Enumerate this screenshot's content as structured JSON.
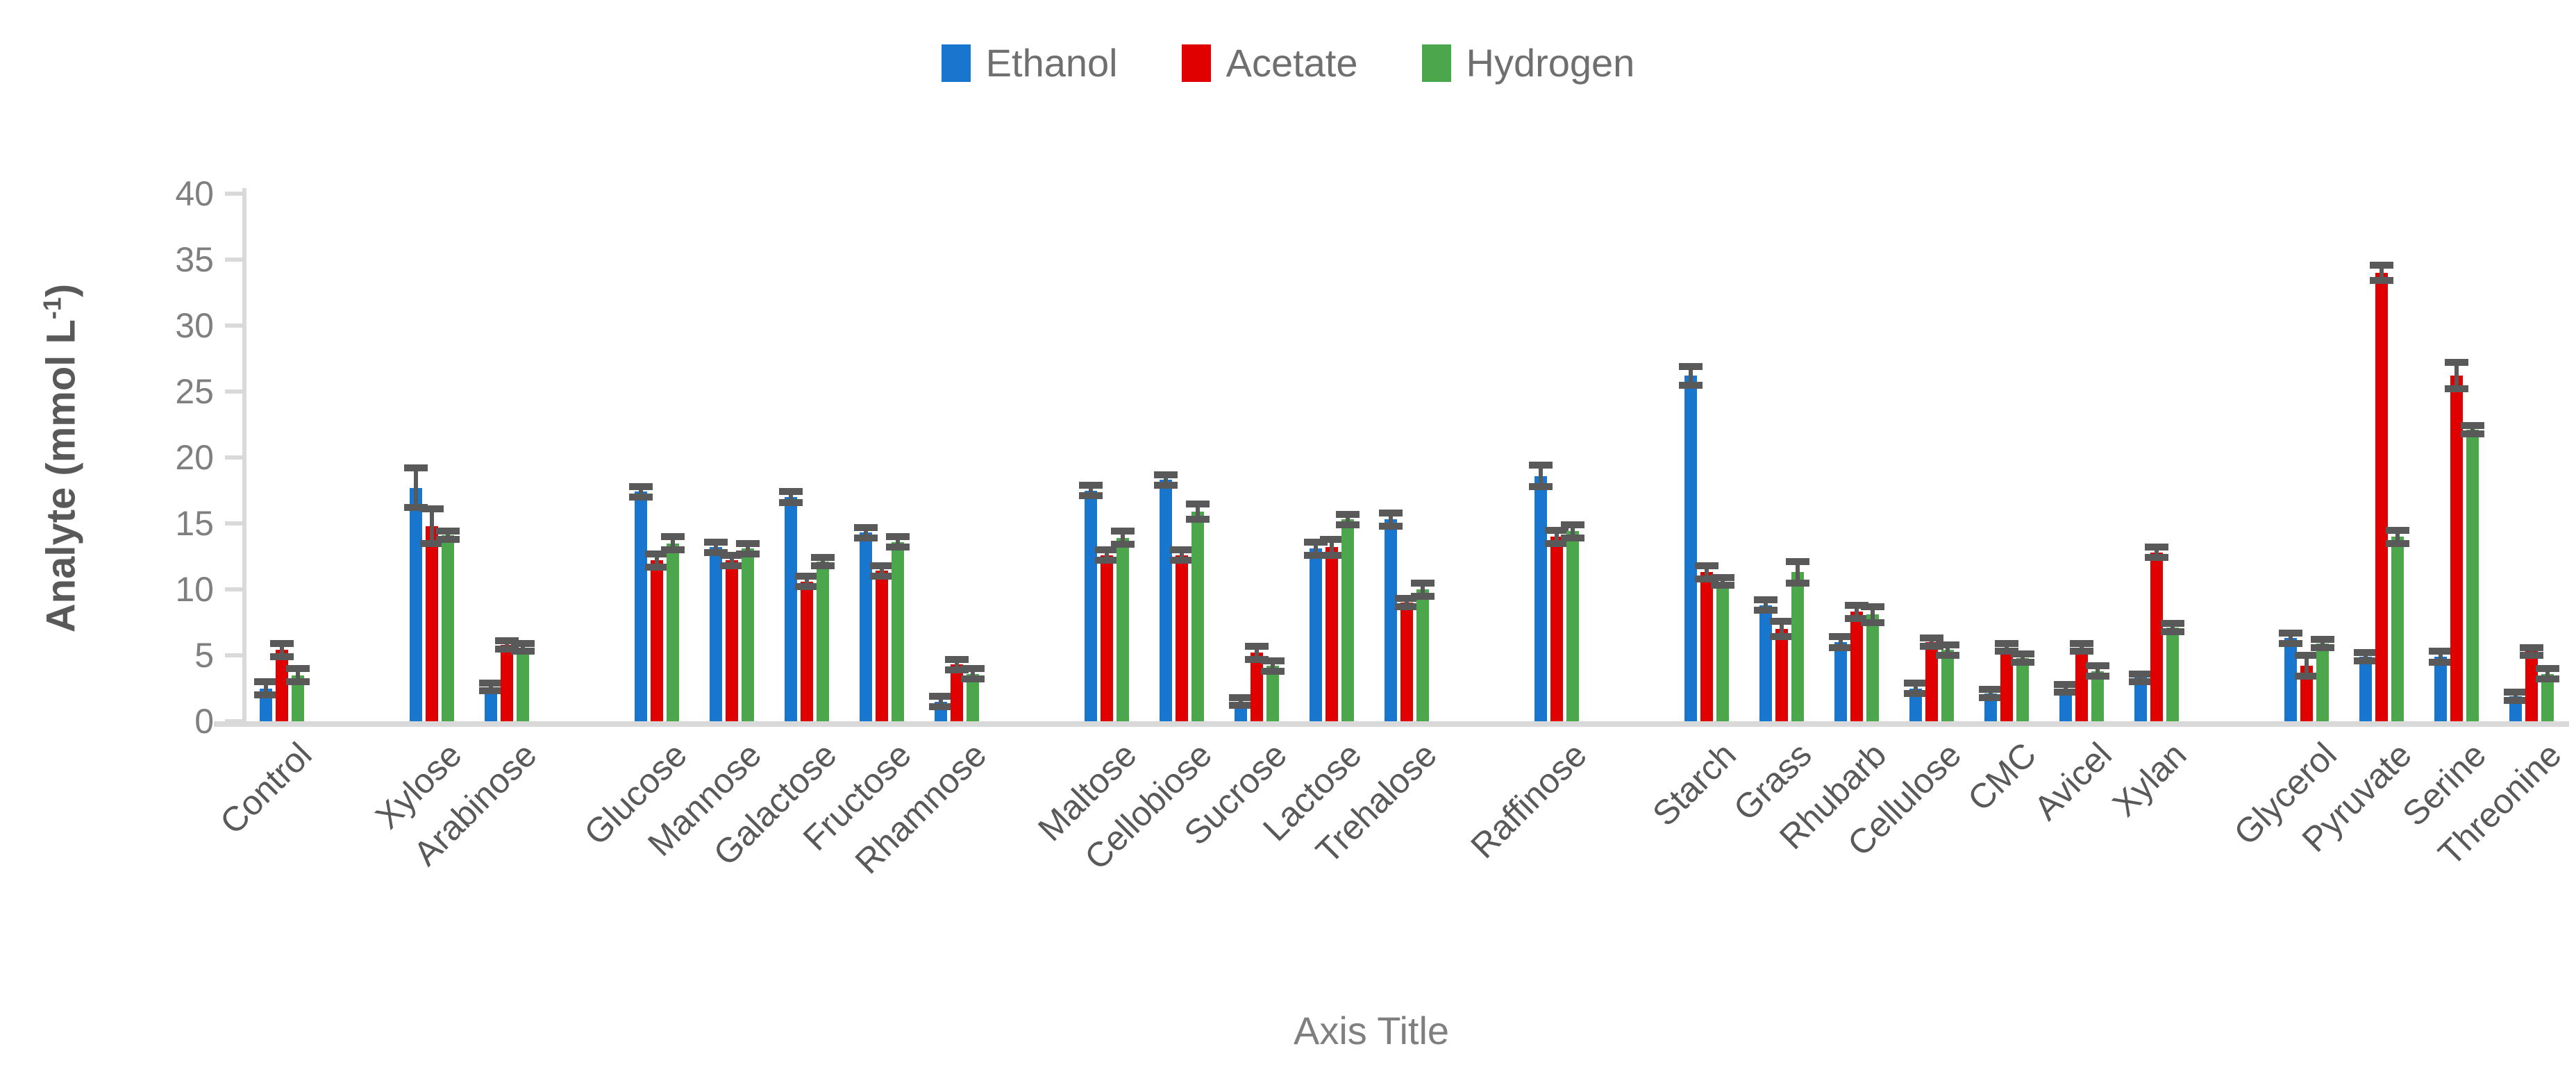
{
  "legend": {
    "items": [
      {
        "label": "Ethanol",
        "color": "#1976CE"
      },
      {
        "label": "Acetate",
        "color": "#E00000"
      },
      {
        "label": "Hydrogen",
        "color": "#4CA64C"
      }
    ]
  },
  "y_axis": {
    "title_main": "Analyte (mmol L",
    "title_sup": "-1",
    "title_close": ")",
    "ticks": [
      0,
      5,
      10,
      15,
      20,
      25,
      30,
      35,
      40
    ]
  },
  "x_axis": {
    "title": "Axis Title"
  },
  "colors": {
    "error_bar": "#595959",
    "axis_line": "#D9D9D9",
    "tick_text": "#7F7F7F",
    "category_text": "#595959"
  },
  "chart_data": {
    "type": "bar",
    "title": "",
    "xlabel": "Axis Title",
    "ylabel": "Analyte (mmol L-1)",
    "ylim": [
      0,
      40
    ],
    "grid": false,
    "legend_position": "top",
    "error_bars": true,
    "categories": [
      "Control",
      "Xylose",
      "Arabinose",
      "Glucose",
      "Mannose",
      "Galactose",
      "Fructose",
      "Rhamnose",
      "Maltose",
      "Cellobiose",
      "Sucrose",
      "Lactose",
      "Trehalose",
      "Raffinose",
      "Starch",
      "Grass",
      "Rhubarb",
      "Cellulose",
      "CMC",
      "Avicel",
      "Xylan",
      "Glycerol",
      "Pyruvate",
      "Serine",
      "Threonine"
    ],
    "gap_after": [
      "Control",
      "Arabinose",
      "Rhamnose",
      "Trehalose",
      "Raffinose",
      "Xylan"
    ],
    "series": [
      {
        "name": "Ethanol",
        "color": "#1976CE",
        "values": [
          2.5,
          17.7,
          2.6,
          17.4,
          13.2,
          17.0,
          14.3,
          1.5,
          17.5,
          18.3,
          1.5,
          13.1,
          15.3,
          18.6,
          26.2,
          8.8,
          6.0,
          2.5,
          2.1,
          2.5,
          3.3,
          6.3,
          4.9,
          4.9,
          1.9
        ],
        "errors": [
          0.5,
          1.5,
          0.3,
          0.4,
          0.4,
          0.4,
          0.4,
          0.4,
          0.4,
          0.4,
          0.3,
          0.5,
          0.5,
          0.8,
          0.7,
          0.4,
          0.4,
          0.4,
          0.3,
          0.3,
          0.3,
          0.4,
          0.3,
          0.4,
          0.3
        ]
      },
      {
        "name": "Acetate",
        "color": "#E00000",
        "values": [
          5.4,
          14.8,
          5.8,
          12.2,
          12.2,
          10.6,
          11.4,
          4.3,
          12.6,
          12.6,
          5.2,
          13.2,
          9.0,
          14.0,
          11.3,
          7.0,
          8.3,
          6.0,
          5.6,
          5.6,
          12.8,
          4.2,
          34.0,
          26.2,
          5.3
        ],
        "errors": [
          0.5,
          1.3,
          0.3,
          0.5,
          0.4,
          0.4,
          0.4,
          0.4,
          0.4,
          0.4,
          0.5,
          0.6,
          0.3,
          0.5,
          0.5,
          0.6,
          0.5,
          0.3,
          0.3,
          0.3,
          0.4,
          0.8,
          0.6,
          1.0,
          0.3
        ]
      },
      {
        "name": "Hydrogen",
        "color": "#4CA64C",
        "values": [
          3.5,
          14.1,
          5.6,
          13.5,
          13.1,
          12.1,
          13.6,
          3.6,
          13.9,
          15.9,
          4.2,
          15.3,
          10.0,
          14.4,
          10.6,
          11.3,
          8.1,
          5.4,
          4.8,
          3.8,
          7.1,
          5.9,
          14.0,
          22.1,
          3.6
        ],
        "errors": [
          0.5,
          0.3,
          0.3,
          0.5,
          0.4,
          0.3,
          0.4,
          0.4,
          0.5,
          0.6,
          0.4,
          0.4,
          0.5,
          0.5,
          0.3,
          0.8,
          0.6,
          0.4,
          0.3,
          0.4,
          0.3,
          0.3,
          0.5,
          0.3,
          0.4
        ]
      }
    ]
  }
}
